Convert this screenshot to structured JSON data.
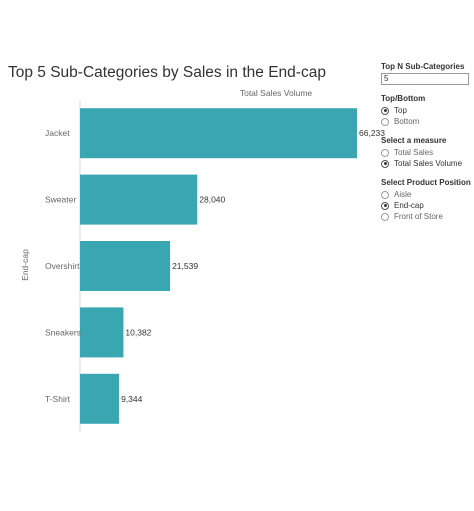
{
  "chart_data": {
    "type": "bar",
    "orientation": "horizontal",
    "title": "Top 5 Sub-Categories by Sales in the End-cap",
    "xlabel": "Total Sales Volume",
    "row_header": "End-cap",
    "categories": [
      "Jacket",
      "Sweater",
      "Overshirt",
      "Sneakers",
      "T-Shirt"
    ],
    "values": [
      66233,
      28040,
      21539,
      10382,
      9344
    ],
    "value_labels": [
      "66,233",
      "28,040",
      "21,539",
      "10,382",
      "9,344"
    ],
    "xlim": [
      0,
      70000
    ],
    "bar_color": "#3aa6b2",
    "grid": false,
    "x_axis_ticks_shown": false
  },
  "filters": {
    "top_n": {
      "title": "Top N Sub-Categories",
      "value": "5"
    },
    "top_bottom": {
      "title": "Top/Bottom",
      "options": [
        {
          "label": "Top",
          "selected": true
        },
        {
          "label": "Bottom",
          "selected": false
        }
      ]
    },
    "measure": {
      "title": "Select a measure",
      "options": [
        {
          "label": "Total Sales",
          "selected": false
        },
        {
          "label": "Total Sales Volume",
          "selected": true
        }
      ]
    },
    "position": {
      "title": "Select Product Position",
      "options": [
        {
          "label": "Aisle",
          "selected": false
        },
        {
          "label": "End-cap",
          "selected": true
        },
        {
          "label": "Front of Store",
          "selected": false
        }
      ]
    }
  }
}
